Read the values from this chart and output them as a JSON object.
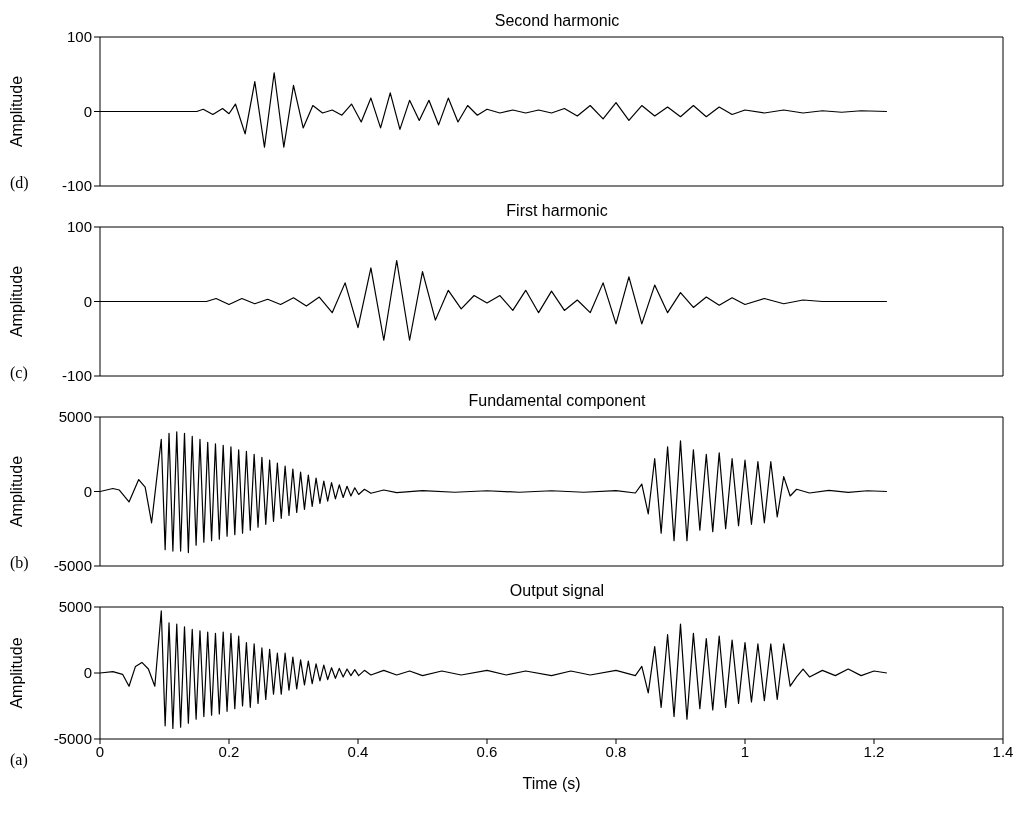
{
  "chart_data": [
    {
      "type": "line",
      "title": "Second harmonic",
      "ylabel": "Amplitude",
      "annotations": [
        "(d)"
      ],
      "xlim": [
        0,
        1.4
      ],
      "xticks": [
        0,
        0.2,
        0.4,
        0.6,
        0.8,
        1,
        1.2,
        1.4
      ],
      "ylim": [
        -100,
        100
      ],
      "yticks": [
        -100,
        0,
        100
      ],
      "tick_labels": "y",
      "series": [
        {
          "color": "#000000",
          "x": [
            0,
            0.15,
            0.16,
            0.175,
            0.19,
            0.2,
            0.21,
            0.225,
            0.24,
            0.255,
            0.27,
            0.285,
            0.3,
            0.315,
            0.33,
            0.345,
            0.36,
            0.375,
            0.39,
            0.405,
            0.42,
            0.435,
            0.45,
            0.465,
            0.48,
            0.495,
            0.51,
            0.525,
            0.54,
            0.555,
            0.57,
            0.585,
            0.6,
            0.62,
            0.64,
            0.66,
            0.68,
            0.7,
            0.72,
            0.74,
            0.76,
            0.78,
            0.8,
            0.82,
            0.84,
            0.86,
            0.88,
            0.9,
            0.92,
            0.94,
            0.96,
            0.98,
            1.0,
            1.03,
            1.06,
            1.09,
            1.12,
            1.15,
            1.18,
            1.22
          ],
          "values": [
            0,
            0,
            3,
            -4,
            4,
            -3,
            10,
            -30,
            40,
            -48,
            52,
            -48,
            35,
            -22,
            8,
            -2,
            2,
            -5,
            10,
            -14,
            18,
            -22,
            25,
            -24,
            15,
            -12,
            15,
            -18,
            18,
            -14,
            8,
            -5,
            3,
            -2,
            2,
            -2,
            2,
            -2,
            4,
            -6,
            8,
            -10,
            12,
            -12,
            8,
            -6,
            6,
            -7,
            8,
            -7,
            6,
            -4,
            2,
            -2,
            2,
            -2,
            1,
            -1,
            1,
            0
          ]
        }
      ]
    },
    {
      "type": "line",
      "title": "First harmonic",
      "ylabel": "Amplitude",
      "annotations": [
        "(c)"
      ],
      "xlim": [
        0,
        1.4
      ],
      "xticks": [
        0,
        0.2,
        0.4,
        0.6,
        0.8,
        1,
        1.2,
        1.4
      ],
      "ylim": [
        -100,
        100
      ],
      "yticks": [
        -100,
        0,
        100
      ],
      "tick_labels": "y",
      "series": [
        {
          "color": "#000000",
          "x": [
            0,
            0.165,
            0.18,
            0.2,
            0.22,
            0.24,
            0.26,
            0.28,
            0.3,
            0.32,
            0.34,
            0.36,
            0.38,
            0.4,
            0.42,
            0.44,
            0.46,
            0.48,
            0.5,
            0.52,
            0.54,
            0.56,
            0.58,
            0.6,
            0.62,
            0.64,
            0.66,
            0.68,
            0.7,
            0.72,
            0.74,
            0.76,
            0.78,
            0.8,
            0.82,
            0.84,
            0.86,
            0.88,
            0.9,
            0.92,
            0.94,
            0.96,
            0.98,
            1.0,
            1.03,
            1.06,
            1.09,
            1.12,
            1.22
          ],
          "values": [
            0,
            0,
            4,
            -4,
            4,
            -3,
            3,
            -4,
            5,
            -6,
            6,
            -15,
            25,
            -35,
            45,
            -52,
            55,
            -52,
            40,
            -25,
            15,
            -10,
            8,
            -2,
            8,
            -12,
            15,
            -15,
            14,
            -12,
            2,
            -15,
            25,
            -30,
            33,
            -30,
            22,
            -15,
            12,
            -8,
            6,
            -5,
            5,
            -4,
            4,
            -3,
            2,
            0,
            0
          ]
        }
      ]
    },
    {
      "type": "line",
      "title": "Fundamental component",
      "ylabel": "Amplitude",
      "annotations": [
        "(b)"
      ],
      "xlim": [
        0,
        1.4
      ],
      "xticks": [
        0,
        0.2,
        0.4,
        0.6,
        0.8,
        1,
        1.2,
        1.4
      ],
      "ylim": [
        -5000,
        5000
      ],
      "yticks": [
        -5000,
        0,
        5000
      ],
      "tick_labels": "y",
      "series": [
        {
          "color": "#000000",
          "x": [
            0,
            0.02,
            0.03,
            0.045,
            0.06,
            0.07,
            0.08,
            0.095,
            0.101,
            0.107,
            0.113,
            0.119,
            0.125,
            0.131,
            0.137,
            0.143,
            0.149,
            0.155,
            0.161,
            0.167,
            0.173,
            0.179,
            0.185,
            0.191,
            0.197,
            0.203,
            0.209,
            0.215,
            0.221,
            0.227,
            0.233,
            0.239,
            0.245,
            0.251,
            0.257,
            0.263,
            0.269,
            0.275,
            0.281,
            0.287,
            0.293,
            0.299,
            0.305,
            0.311,
            0.317,
            0.323,
            0.329,
            0.335,
            0.341,
            0.347,
            0.353,
            0.359,
            0.365,
            0.371,
            0.377,
            0.383,
            0.389,
            0.395,
            0.401,
            0.41,
            0.42,
            0.44,
            0.46,
            0.5,
            0.55,
            0.6,
            0.65,
            0.7,
            0.75,
            0.8,
            0.83,
            0.84,
            0.85,
            0.86,
            0.87,
            0.88,
            0.89,
            0.9,
            0.91,
            0.92,
            0.93,
            0.94,
            0.95,
            0.96,
            0.97,
            0.98,
            0.99,
            1.0,
            1.01,
            1.02,
            1.03,
            1.04,
            1.05,
            1.06,
            1.07,
            1.08,
            1.1,
            1.13,
            1.16,
            1.19,
            1.22
          ],
          "values": [
            0,
            200,
            100,
            -700,
            800,
            300,
            -2100,
            3500,
            -3900,
            3900,
            -4000,
            4000,
            -4000,
            3900,
            -4100,
            3700,
            -3600,
            3500,
            -3400,
            3300,
            -3300,
            3200,
            -3200,
            3100,
            -3000,
            3000,
            -2900,
            2800,
            -2800,
            2700,
            -2600,
            2500,
            -2400,
            2300,
            -2200,
            2100,
            -2000,
            1900,
            -1800,
            1700,
            -1600,
            1500,
            -1400,
            1300,
            -1200,
            1100,
            -1000,
            900,
            -800,
            700,
            -650,
            600,
            -500,
            450,
            -400,
            350,
            -300,
            250,
            -200,
            150,
            -120,
            100,
            -80,
            60,
            -50,
            50,
            -50,
            50,
            -50,
            60,
            -100,
            500,
            -1500,
            2200,
            -2800,
            3000,
            -3300,
            3400,
            -3300,
            2800,
            -2600,
            2500,
            -2700,
            2600,
            -2500,
            2200,
            -2300,
            2100,
            -2200,
            2000,
            -2100,
            2000,
            -1700,
            1000,
            -300,
            150,
            -100,
            80,
            -60,
            50,
            0
          ]
        }
      ]
    },
    {
      "type": "line",
      "title": "Output signal",
      "xlabel": "Time (s)",
      "ylabel": "Amplitude",
      "annotations": [
        "(a)"
      ],
      "xlim": [
        0,
        1.4
      ],
      "xticks": [
        0,
        0.2,
        0.4,
        0.6,
        0.8,
        1,
        1.2,
        1.4
      ],
      "ylim": [
        -5000,
        5000
      ],
      "yticks": [
        -5000,
        0,
        5000
      ],
      "series": [
        {
          "color": "#000000",
          "x": [
            0,
            0.02,
            0.035,
            0.045,
            0.055,
            0.065,
            0.075,
            0.085,
            0.095,
            0.101,
            0.107,
            0.113,
            0.119,
            0.125,
            0.131,
            0.137,
            0.143,
            0.149,
            0.155,
            0.161,
            0.167,
            0.173,
            0.179,
            0.185,
            0.191,
            0.197,
            0.203,
            0.209,
            0.215,
            0.221,
            0.227,
            0.233,
            0.239,
            0.245,
            0.251,
            0.257,
            0.263,
            0.269,
            0.275,
            0.281,
            0.287,
            0.293,
            0.299,
            0.305,
            0.311,
            0.317,
            0.323,
            0.329,
            0.335,
            0.341,
            0.347,
            0.353,
            0.359,
            0.365,
            0.371,
            0.377,
            0.383,
            0.389,
            0.395,
            0.401,
            0.41,
            0.42,
            0.44,
            0.46,
            0.48,
            0.5,
            0.53,
            0.56,
            0.6,
            0.63,
            0.66,
            0.7,
            0.73,
            0.76,
            0.8,
            0.83,
            0.84,
            0.85,
            0.86,
            0.87,
            0.88,
            0.89,
            0.9,
            0.91,
            0.92,
            0.93,
            0.94,
            0.95,
            0.96,
            0.97,
            0.98,
            0.99,
            1.0,
            1.01,
            1.02,
            1.03,
            1.04,
            1.05,
            1.06,
            1.07,
            1.08,
            1.09,
            1.1,
            1.12,
            1.14,
            1.16,
            1.18,
            1.2,
            1.22
          ],
          "values": [
            0,
            100,
            -100,
            -1000,
            500,
            800,
            300,
            -1000,
            4700,
            -4000,
            3800,
            -4200,
            3700,
            -4100,
            3500,
            -3800,
            3300,
            -3500,
            3200,
            -3300,
            3100,
            -3200,
            3000,
            -3100,
            3100,
            -2900,
            3000,
            -2700,
            2800,
            -2500,
            2300,
            -2600,
            2200,
            -2300,
            1900,
            -2000,
            1800,
            -1600,
            1500,
            -1600,
            1500,
            -1300,
            1200,
            -1200,
            1000,
            -900,
            900,
            -800,
            700,
            -600,
            600,
            -500,
            400,
            -400,
            350,
            -300,
            300,
            -200,
            250,
            -200,
            200,
            -150,
            200,
            -150,
            150,
            -200,
            150,
            -150,
            200,
            -150,
            150,
            -200,
            150,
            -150,
            200,
            -200,
            500,
            -1500,
            2000,
            -2600,
            2900,
            -3300,
            3700,
            -3500,
            3000,
            -2700,
            2600,
            -2800,
            2800,
            -2600,
            2500,
            -2300,
            2300,
            -2200,
            2200,
            -2100,
            2200,
            -2000,
            2200,
            -1000,
            -300,
            300,
            -300,
            200,
            -200,
            300,
            -200,
            150,
            0
          ]
        }
      ]
    }
  ]
}
